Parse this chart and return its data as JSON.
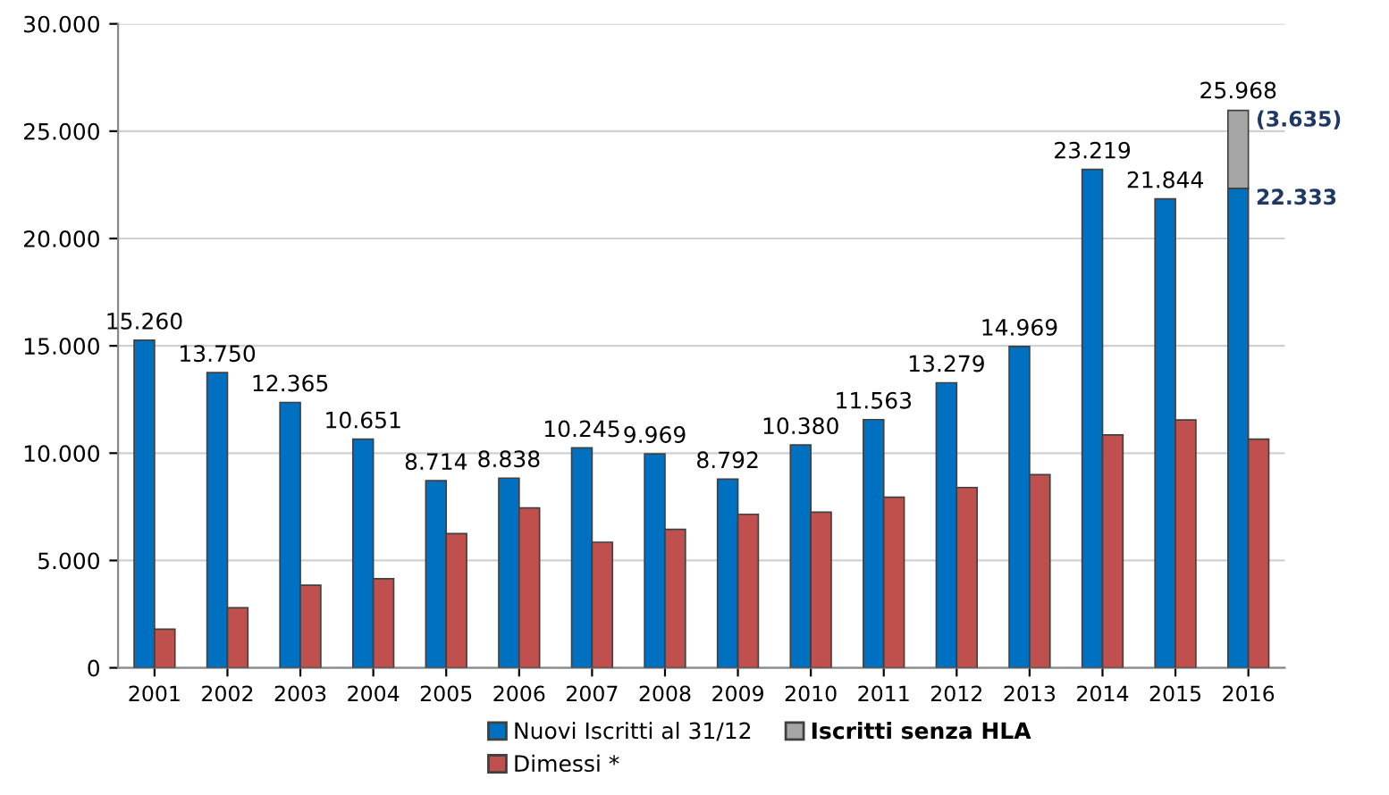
{
  "chart_data": {
    "type": "bar",
    "categories": [
      "2001",
      "2002",
      "2003",
      "2004",
      "2005",
      "2006",
      "2007",
      "2008",
      "2009",
      "2010",
      "2011",
      "2012",
      "2013",
      "2014",
      "2015",
      "2016"
    ],
    "series": [
      {
        "name": "Nuovi Iscritti al 31/12",
        "color": "#0070c0",
        "values": [
          15260,
          13750,
          12365,
          10651,
          8714,
          8838,
          10245,
          9969,
          8792,
          10380,
          11563,
          13279,
          14969,
          23219,
          21844,
          22333
        ],
        "value_labels": [
          "15.260",
          "13.750",
          "12.365",
          "10.651",
          "8.714",
          "8.838",
          "10.245",
          "9.969",
          "8.792",
          "10.380",
          "11.563",
          "13.279",
          "14.969",
          "23.219",
          "21.844",
          null
        ]
      },
      {
        "name": "Dimessi *",
        "color": "#c0504d",
        "values": [
          1800,
          2800,
          3850,
          4150,
          6250,
          7450,
          5850,
          6450,
          7150,
          7250,
          7950,
          8400,
          9000,
          10850,
          11550,
          10650
        ]
      },
      {
        "name": "Iscritti senza HLA",
        "color": "#a6a6a6",
        "values": [
          null,
          null,
          null,
          null,
          null,
          null,
          null,
          null,
          null,
          null,
          null,
          null,
          null,
          null,
          null,
          3635
        ],
        "base": [
          null,
          null,
          null,
          null,
          null,
          null,
          null,
          null,
          null,
          null,
          null,
          null,
          null,
          null,
          null,
          22333
        ]
      }
    ],
    "annotations": [
      {
        "text": "25.968",
        "x": "2016",
        "y": 25968
      },
      {
        "text": "(3.635)",
        "x": "2016",
        "y": 25968
      },
      {
        "text": "22.333",
        "x": "2016",
        "y": 22333
      }
    ],
    "ylim": [
      0,
      30000
    ],
    "yticks": [
      {
        "value": 0,
        "label": "0"
      },
      {
        "value": 5000,
        "label": "5.000"
      },
      {
        "value": 10000,
        "label": "10.000"
      },
      {
        "value": 15000,
        "label": "15.000"
      },
      {
        "value": 20000,
        "label": "20.000"
      },
      {
        "value": 25000,
        "label": "25.000"
      },
      {
        "value": 30000,
        "label": "30.000"
      }
    ],
    "grid": "y",
    "legend": "bottom"
  }
}
